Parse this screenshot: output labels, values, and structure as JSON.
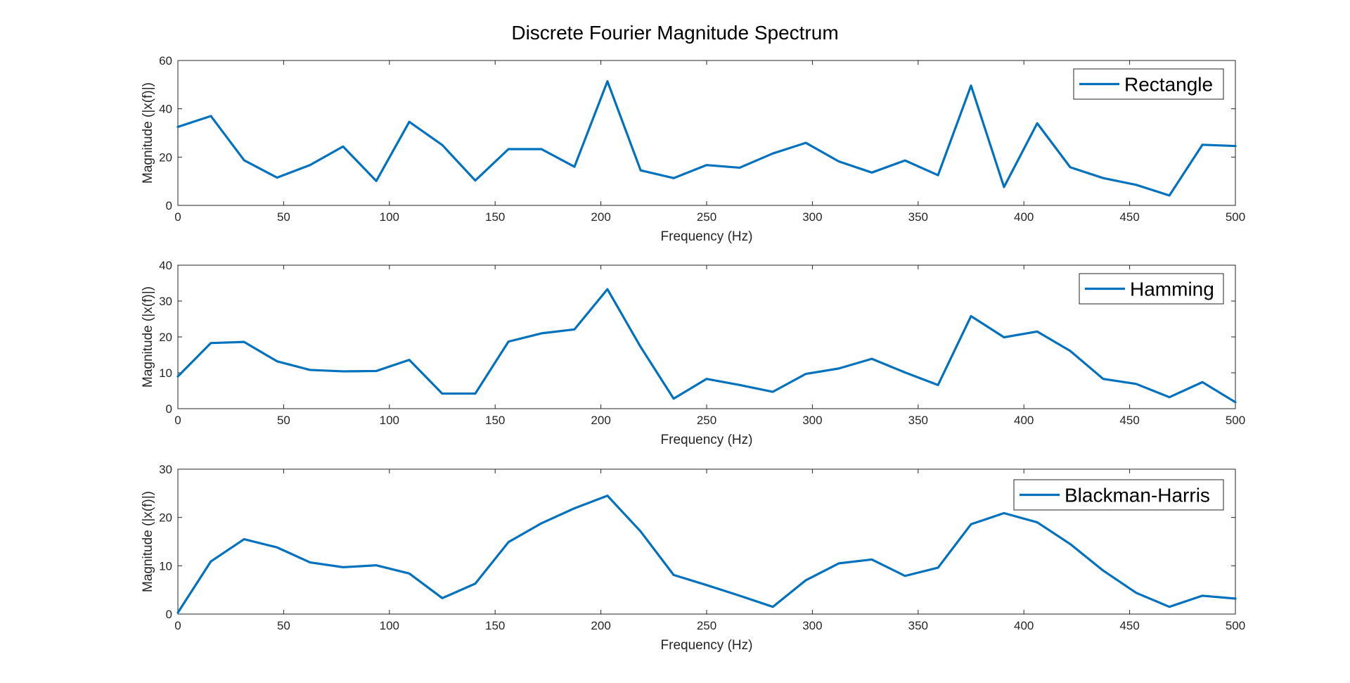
{
  "figure_title": "Discrete Fourier Magnitude Spectrum",
  "colors": {
    "series": "#0072BD",
    "axes": "#262626"
  },
  "chart_data": [
    {
      "type": "line",
      "title": "",
      "xlabel": "Frequency (Hz)",
      "ylabel": "Magnitude (|x(f)|)",
      "xlim": [
        0,
        500
      ],
      "ylim": [
        0,
        60
      ],
      "xticks": [
        0,
        50,
        100,
        150,
        200,
        250,
        300,
        350,
        400,
        450,
        500
      ],
      "yticks": [
        0,
        20,
        40,
        60
      ],
      "grid": false,
      "legend_position": "top-right",
      "x": [
        0,
        15.6,
        31.3,
        46.9,
        62.5,
        78.1,
        93.8,
        109.4,
        125,
        140.6,
        156.3,
        171.9,
        187.5,
        203.1,
        218.8,
        234.4,
        250,
        265.6,
        281.3,
        296.9,
        312.5,
        328.1,
        343.8,
        359.4,
        375,
        390.6,
        406.3,
        421.9,
        437.5,
        453.1,
        468.8,
        484.4,
        500
      ],
      "series": [
        {
          "name": "Rectangle",
          "values": [
            32.5,
            37,
            18.7,
            11.5,
            16.7,
            24.4,
            10.1,
            34.6,
            25,
            10.3,
            23.3,
            23.3,
            16,
            51.4,
            14.5,
            11.3,
            16.7,
            15.6,
            21.5,
            25.9,
            18.2,
            13.6,
            18.6,
            12.5,
            49.6,
            7.6,
            34,
            15.8,
            11.3,
            8.5,
            4.1,
            25.1,
            24.6
          ]
        }
      ]
    },
    {
      "type": "line",
      "title": "",
      "xlabel": "Frequency (Hz)",
      "ylabel": "Magnitude (|x(f)|)",
      "xlim": [
        0,
        500
      ],
      "ylim": [
        0,
        40
      ],
      "xticks": [
        0,
        50,
        100,
        150,
        200,
        250,
        300,
        350,
        400,
        450,
        500
      ],
      "yticks": [
        0,
        10,
        20,
        30,
        40
      ],
      "grid": false,
      "legend_position": "top-right",
      "x": [
        0,
        15.6,
        31.3,
        46.9,
        62.5,
        78.1,
        93.8,
        109.4,
        125,
        140.6,
        156.3,
        171.9,
        187.5,
        203.1,
        218.8,
        234.4,
        250,
        265.6,
        281.3,
        296.9,
        312.5,
        328.1,
        343.8,
        359.4,
        375,
        390.6,
        406.3,
        421.9,
        437.5,
        453.1,
        468.8,
        484.4,
        500
      ],
      "series": [
        {
          "name": "Hamming",
          "values": [
            9,
            18.3,
            18.6,
            13.2,
            10.8,
            10.4,
            10.5,
            13.6,
            4.2,
            4.2,
            18.7,
            21,
            22.1,
            33.3,
            17.2,
            2.8,
            8.3,
            6.6,
            4.7,
            9.7,
            11.2,
            13.9,
            10.1,
            6.6,
            25.8,
            19.9,
            21.5,
            16.1,
            8.3,
            6.9,
            3.2,
            7.4,
            1.8
          ]
        }
      ]
    },
    {
      "type": "line",
      "title": "",
      "xlabel": "Frequency (Hz)",
      "ylabel": "Magnitude (|x(f)|)",
      "xlim": [
        0,
        500
      ],
      "ylim": [
        0,
        30
      ],
      "xticks": [
        0,
        50,
        100,
        150,
        200,
        250,
        300,
        350,
        400,
        450,
        500
      ],
      "yticks": [
        0,
        10,
        20,
        30
      ],
      "grid": false,
      "legend_position": "top-right",
      "x": [
        0,
        15.6,
        31.3,
        46.9,
        62.5,
        78.1,
        93.8,
        109.4,
        125,
        140.6,
        156.3,
        171.9,
        187.5,
        203.1,
        218.8,
        234.4,
        250,
        265.6,
        281.3,
        296.9,
        312.5,
        328.1,
        343.8,
        359.4,
        375,
        390.6,
        406.3,
        421.9,
        437.5,
        453.1,
        468.8,
        484.4,
        500
      ],
      "series": [
        {
          "name": "Blackman-Harris",
          "values": [
            0.3,
            10.9,
            15.5,
            13.8,
            10.7,
            9.7,
            10.1,
            8.4,
            3.3,
            6.3,
            14.9,
            18.8,
            21.9,
            24.5,
            17.1,
            8.1,
            6,
            3.8,
            1.5,
            7,
            10.5,
            11.3,
            7.9,
            9.6,
            18.6,
            20.9,
            19,
            14.5,
            9,
            4.4,
            1.5,
            3.8,
            3.2
          ]
        }
      ]
    }
  ]
}
